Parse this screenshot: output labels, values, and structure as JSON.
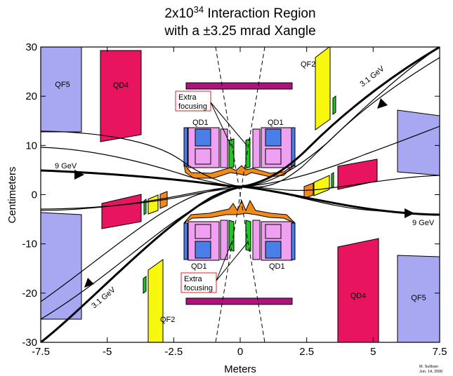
{
  "title": {
    "line1_main": "2x10",
    "line1_sup": "34",
    "line1_rest": " Interaction Region",
    "line2": "with a ±3.25 mrad Xangle"
  },
  "axes": {
    "xlabel": "Meters",
    "ylabel": "Centimeters",
    "xlim": [
      -7.5,
      7.5
    ],
    "ylim": [
      -30,
      30
    ],
    "xticks": [
      {
        "v": -7.5,
        "label": "-7.5"
      },
      {
        "v": -5,
        "label": "-5"
      },
      {
        "v": -2.5,
        "label": "-2.5"
      },
      {
        "v": 0,
        "label": "0"
      },
      {
        "v": 2.5,
        "label": "2.5"
      },
      {
        "v": 5,
        "label": "5"
      },
      {
        "v": 7.5,
        "label": "7.5"
      }
    ],
    "yticks": [
      {
        "v": 30,
        "label": "30"
      },
      {
        "v": 20,
        "label": "20"
      },
      {
        "v": 10,
        "label": "10"
      },
      {
        "v": 0,
        "label": "0"
      },
      {
        "v": -10,
        "label": "-10"
      },
      {
        "v": -20,
        "label": "-20"
      },
      {
        "v": -30,
        "label": "-30"
      }
    ]
  },
  "labels": {
    "qf5": "QF5",
    "qd4": "QD4",
    "qf2": "QF2",
    "qd1": "QD1",
    "energy_low": "3.1 GeV",
    "energy_high": "9 GeV",
    "extra_l1": "Extra",
    "extra_l2": "focusing",
    "credit_name": "M. Sullivan",
    "credit_date": "Jun. 14, 2000"
  },
  "colors": {
    "qf": "#a7a7f2",
    "qd": "#e8145f",
    "qf2": "#f8f80e",
    "pink": "#f0a0f0",
    "blue": "#4a7ee8",
    "green": "#1ec81e",
    "orange": "#f28a1a",
    "magenta": "#b0127c",
    "callout": "#e02020"
  }
}
